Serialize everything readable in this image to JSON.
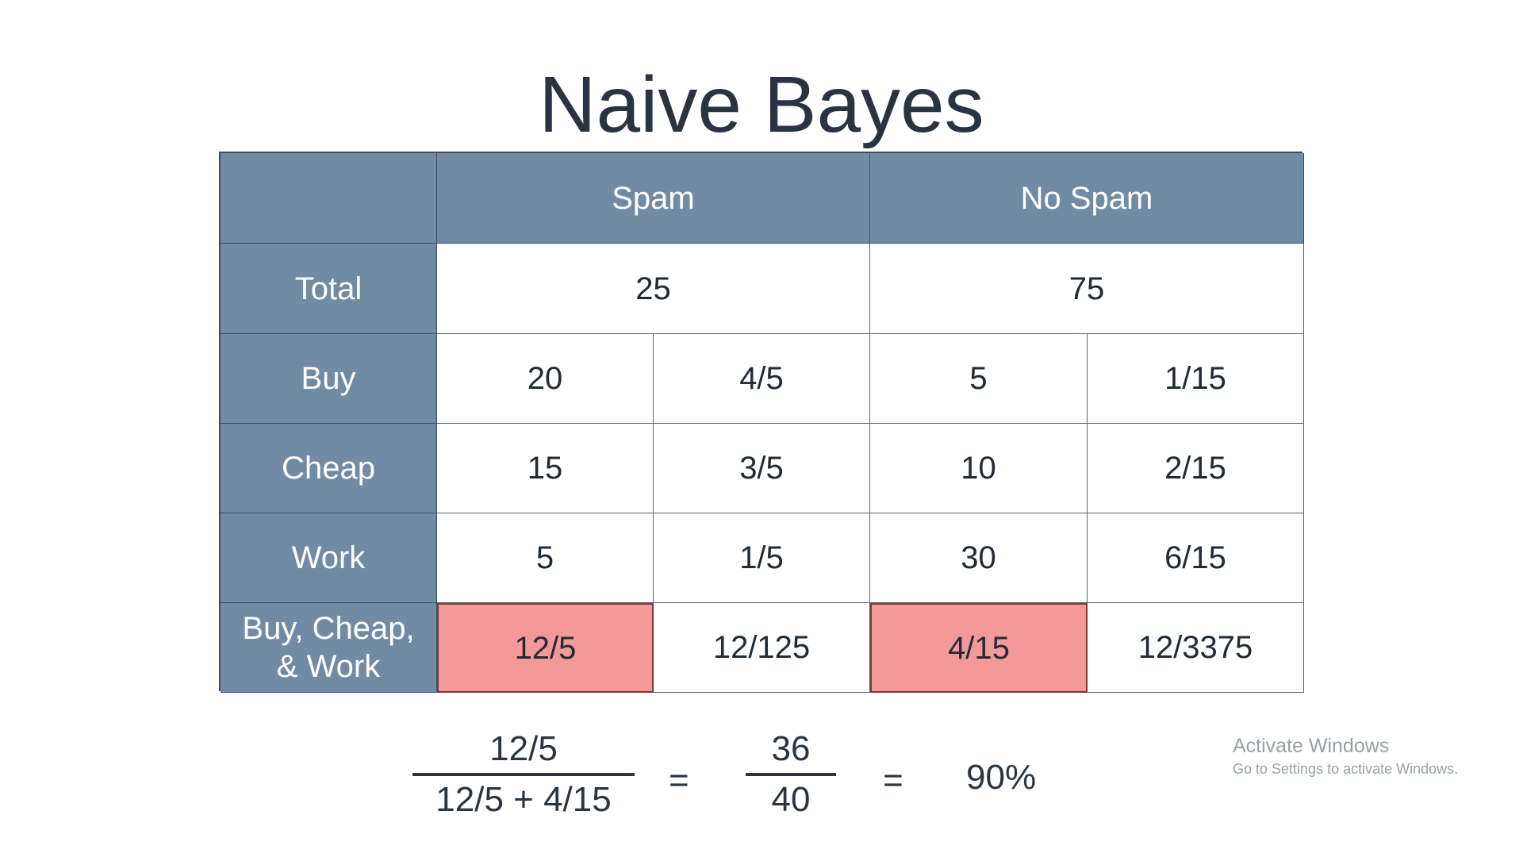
{
  "title": "Naive Bayes",
  "table": {
    "header": {
      "corner": "",
      "spam": "Spam",
      "no_spam": "No Spam"
    },
    "total": {
      "label": "Total",
      "spam": "25",
      "no_spam": "75"
    },
    "rows": [
      {
        "label": "Buy",
        "cells": [
          "20",
          "4/5",
          "5",
          "1/15"
        ]
      },
      {
        "label": "Cheap",
        "cells": [
          "15",
          "3/5",
          "10",
          "2/15"
        ]
      },
      {
        "label": "Work",
        "cells": [
          "5",
          "1/5",
          "30",
          "6/15"
        ]
      },
      {
        "label_line1": "Buy, Cheap,",
        "label_line2": "& Work",
        "cells": [
          "12/5",
          "12/125",
          "4/15",
          "12/3375"
        ]
      }
    ]
  },
  "formula": {
    "frac1_num": "12/5",
    "frac1_den": "12/5 + 4/15",
    "eq1": "=",
    "frac2_num": "36",
    "frac2_den": "40",
    "eq2": "=",
    "result": "90%"
  },
  "watermark": {
    "title": "Activate Windows",
    "subtitle": "Go to Settings to activate Windows."
  },
  "colors": {
    "header_bg": "#728ba5",
    "highlight_bg": "#f4999a",
    "text": "#2b3542"
  }
}
